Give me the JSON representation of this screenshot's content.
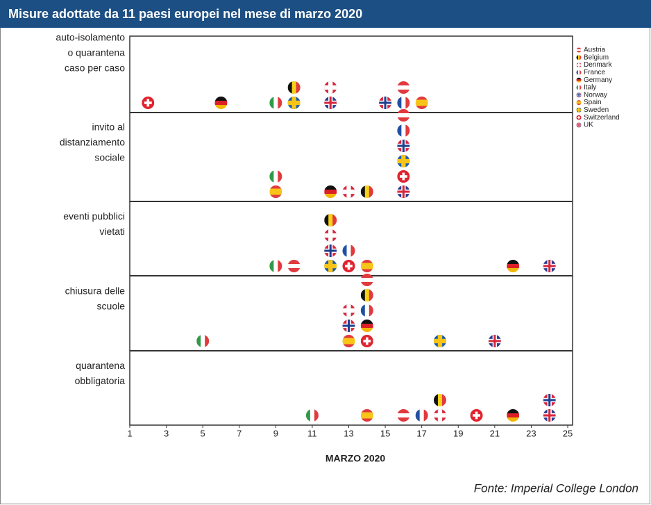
{
  "chart_data": {
    "type": "flag-dot",
    "title": "Misure adottate da 11 paesi europei nel mese di marzo 2020",
    "xlabel": "MARZO 2020",
    "source": "Fonte: Imperial College London",
    "legend": "upper right",
    "categories": [
      [
        "auto-isolamento",
        "o quarantena",
        "caso per caso"
      ],
      [
        "invito al",
        "distanziamento",
        "sociale"
      ],
      [
        "eventi pubblici",
        "vietati"
      ],
      [
        "chiusura delle",
        "scuole"
      ],
      [
        "quarantena",
        "obbligatoria"
      ]
    ],
    "xlim": [
      1,
      25
    ],
    "xticks": [
      1,
      3,
      5,
      7,
      9,
      11,
      13,
      15,
      17,
      19,
      21,
      23,
      25
    ],
    "series": [
      {
        "name": "Austria",
        "flag": "horizontal",
        "colors": [
          "#e03a3e",
          "#ffffff",
          "#e03a3e"
        ],
        "values": [
          16,
          16,
          10,
          14,
          16
        ]
      },
      {
        "name": "Belgium",
        "flag": "vertical",
        "colors": [
          "#111111",
          "#f7d117",
          "#e03a3e"
        ],
        "values": [
          10,
          14,
          12,
          14,
          18
        ]
      },
      {
        "name": "Denmark",
        "flag": "cross",
        "colors": [
          "#d7263d",
          "#ffffff"
        ],
        "values": [
          12,
          13,
          12,
          13,
          18
        ]
      },
      {
        "name": "France",
        "flag": "vertical",
        "colors": [
          "#1f4fa3",
          "#ffffff",
          "#e03a3e"
        ],
        "values": [
          16,
          16,
          13,
          14,
          17
        ]
      },
      {
        "name": "Germany",
        "flag": "horizontal",
        "colors": [
          "#111111",
          "#dd1f26",
          "#f2b705"
        ],
        "values": [
          6,
          12,
          22,
          14,
          22
        ]
      },
      {
        "name": "Italy",
        "flag": "vertical",
        "colors": [
          "#2e9a48",
          "#ffffff",
          "#e03a3e"
        ],
        "values": [
          9,
          9,
          9,
          5,
          11
        ]
      },
      {
        "name": "Norway",
        "flag": "cross",
        "colors": [
          "#d7263d",
          "#ffffff",
          "#1f3f8f"
        ],
        "values": [
          15,
          16,
          12,
          13,
          24
        ]
      },
      {
        "name": "Spain",
        "flag": "horizontal",
        "colors": [
          "#e03a3e",
          "#f7c417",
          "#f7c417",
          "#e03a3e"
        ],
        "values": [
          17,
          9,
          14,
          13,
          14
        ]
      },
      {
        "name": "Sweden",
        "flag": "cross",
        "colors": [
          "#1f5fa8",
          "#f7c417"
        ],
        "values": [
          10,
          16,
          12,
          18,
          null
        ]
      },
      {
        "name": "Switzerland",
        "flag": "plus",
        "colors": [
          "#e0232f",
          "#ffffff"
        ],
        "values": [
          2,
          16,
          13,
          14,
          20
        ]
      },
      {
        "name": "UK",
        "flag": "cross",
        "colors": [
          "#2a3f8f",
          "#ffffff",
          "#d7263d"
        ],
        "values": [
          12,
          16,
          24,
          21,
          24
        ]
      }
    ]
  }
}
